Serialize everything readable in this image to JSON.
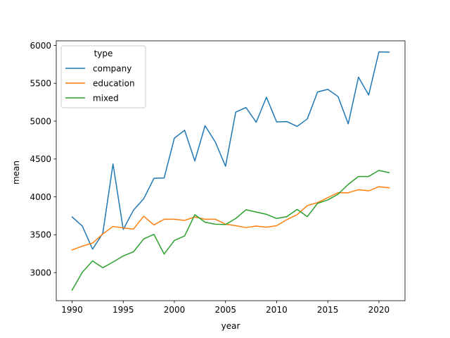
{
  "chart_data": {
    "type": "line",
    "title": "",
    "xlabel": "year",
    "ylabel": "mean",
    "xlim": [
      1988.45,
      2022.55
    ],
    "ylim": [
      2630,
      6060
    ],
    "x_ticks": [
      1990,
      1995,
      2000,
      2005,
      2010,
      2015,
      2020
    ],
    "y_ticks": [
      3000,
      3500,
      4000,
      4500,
      5000,
      5500,
      6000
    ],
    "grid": false,
    "legend": {
      "title": "type",
      "placement": "top-left"
    },
    "x": [
      1990,
      1991,
      1992,
      1993,
      1994,
      1995,
      1996,
      1997,
      1998,
      1999,
      2000,
      2001,
      2002,
      2003,
      2004,
      2005,
      2006,
      2007,
      2008,
      2009,
      2010,
      2011,
      2012,
      2013,
      2014,
      2015,
      2016,
      2017,
      2018,
      2019,
      2020,
      2021
    ],
    "series": [
      {
        "name": "company",
        "color": "#1f77b4",
        "values": [
          3735,
          3615,
          3310,
          3520,
          4435,
          3570,
          3825,
          3975,
          4245,
          4250,
          4775,
          4880,
          4475,
          4940,
          4725,
          4405,
          5120,
          5180,
          4985,
          5315,
          4990,
          4995,
          4930,
          5030,
          5385,
          5420,
          5325,
          4965,
          5580,
          5345,
          5915,
          5910
        ]
      },
      {
        "name": "education",
        "color": "#ff7f0e",
        "values": [
          3300,
          3350,
          3390,
          3510,
          3610,
          3590,
          3575,
          3745,
          3630,
          3705,
          3705,
          3690,
          3735,
          3705,
          3705,
          3640,
          3620,
          3595,
          3615,
          3600,
          3620,
          3700,
          3765,
          3885,
          3925,
          3990,
          4055,
          4055,
          4095,
          4080,
          4135,
          4120
        ]
      },
      {
        "name": "mixed",
        "color": "#2ca02c",
        "values": [
          2770,
          3005,
          3155,
          3065,
          3140,
          3220,
          3275,
          3445,
          3505,
          3245,
          3425,
          3485,
          3765,
          3665,
          3640,
          3635,
          3715,
          3830,
          3800,
          3770,
          3715,
          3740,
          3835,
          3740,
          3915,
          3960,
          4035,
          4165,
          4270,
          4270,
          4350,
          4320
        ]
      }
    ]
  }
}
